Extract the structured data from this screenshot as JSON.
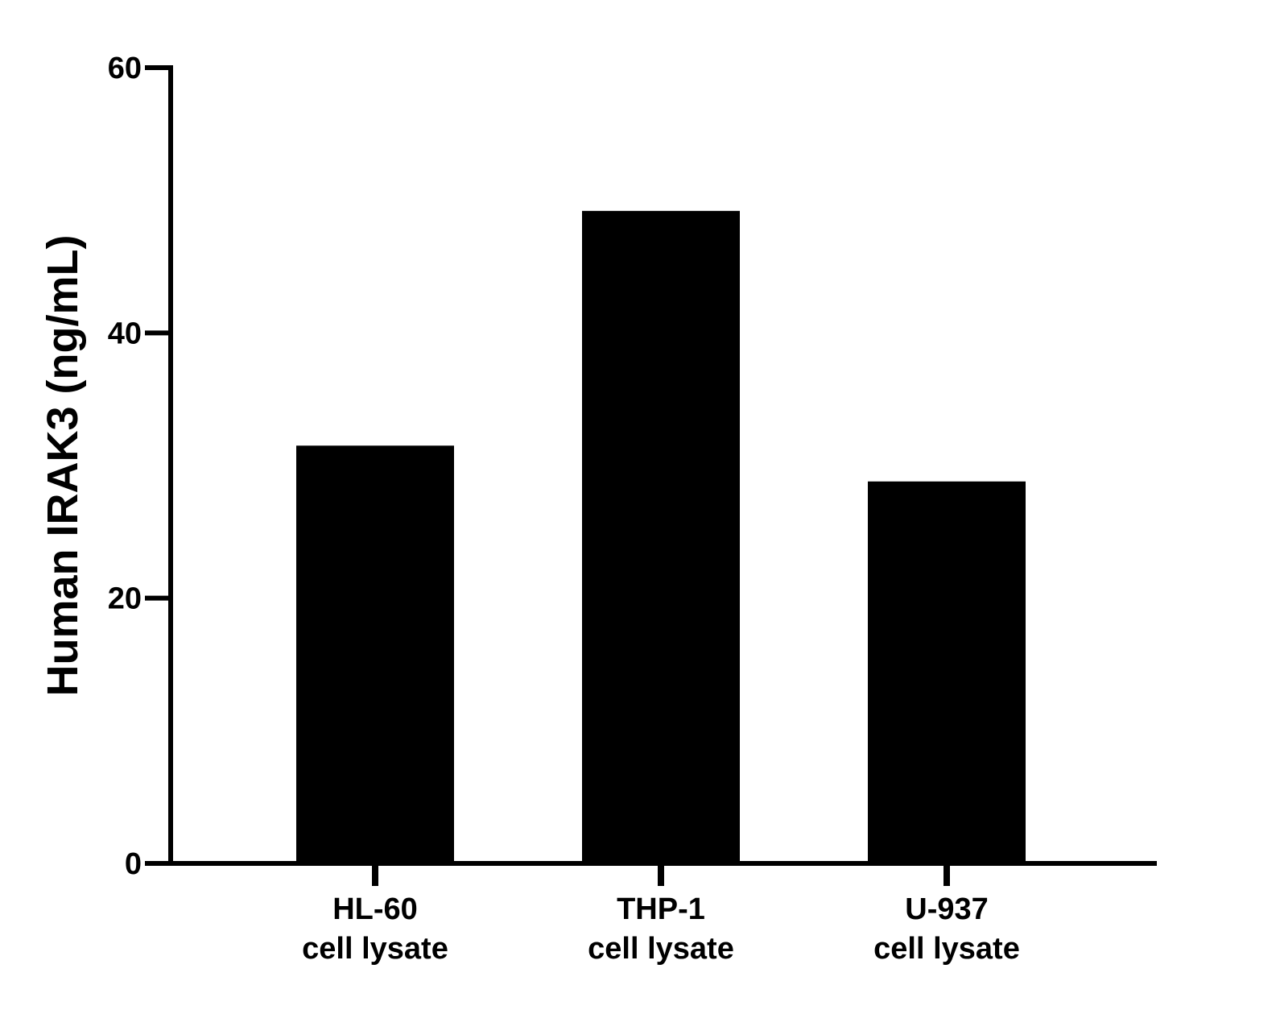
{
  "chart_data": {
    "type": "bar",
    "categories": [
      "HL-60\ncell lysate",
      "THP-1\ncell lysate",
      "U-937\ncell lysate"
    ],
    "category_lines": [
      [
        "HL-60",
        "cell lysate"
      ],
      [
        "THP-1",
        "cell lysate"
      ],
      [
        "U-937",
        "cell lysate"
      ]
    ],
    "values": [
      31.5,
      49.2,
      28.8
    ],
    "title": "",
    "xlabel": "",
    "ylabel": "Human IRAK3 (ng/mL)",
    "ylim": [
      0,
      60
    ],
    "yticks": [
      0,
      20,
      40,
      60
    ],
    "grid": false,
    "legend": "none",
    "bar_color": "#000000",
    "axis_color": "#000000"
  }
}
